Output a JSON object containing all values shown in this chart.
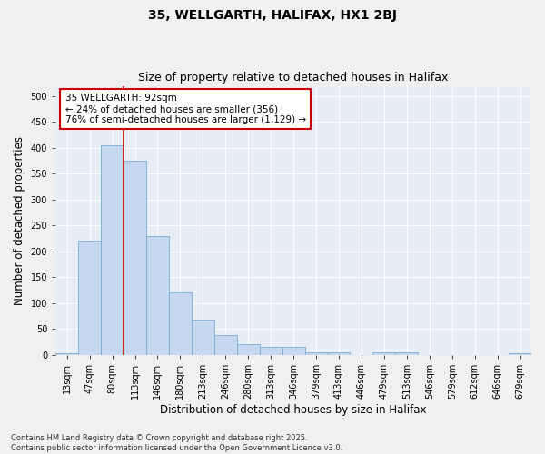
{
  "title_line1": "35, WELLGARTH, HALIFAX, HX1 2BJ",
  "title_line2": "Size of property relative to detached houses in Halifax",
  "xlabel": "Distribution of detached houses by size in Halifax",
  "ylabel": "Number of detached properties",
  "categories": [
    "13sqm",
    "47sqm",
    "80sqm",
    "113sqm",
    "146sqm",
    "180sqm",
    "213sqm",
    "246sqm",
    "280sqm",
    "313sqm",
    "346sqm",
    "379sqm",
    "413sqm",
    "446sqm",
    "479sqm",
    "513sqm",
    "546sqm",
    "579sqm",
    "612sqm",
    "646sqm",
    "679sqm"
  ],
  "values": [
    2,
    220,
    405,
    375,
    230,
    120,
    68,
    38,
    20,
    15,
    15,
    5,
    5,
    0,
    5,
    5,
    0,
    0,
    0,
    0,
    2
  ],
  "bar_color": "#c5d8ef",
  "bar_edge_color": "#7aadd4",
  "vline_index": 2,
  "vline_color": "#cc0000",
  "annotation_text": "35 WELLGARTH: 92sqm\n← 24% of detached houses are smaller (356)\n76% of semi-detached houses are larger (1,129) →",
  "annotation_box_color": "#cc0000",
  "ylim": [
    0,
    520
  ],
  "yticks": [
    0,
    50,
    100,
    150,
    200,
    250,
    300,
    350,
    400,
    450,
    500
  ],
  "background_color": "#f0f0f0",
  "plot_bg_color": "#e8eef6",
  "footnote": "Contains HM Land Registry data © Crown copyright and database right 2025.\nContains public sector information licensed under the Open Government Licence v3.0.",
  "title_fontsize": 10,
  "subtitle_fontsize": 9,
  "tick_fontsize": 7,
  "label_fontsize": 8.5,
  "annot_fontsize": 7.5,
  "footnote_fontsize": 6
}
